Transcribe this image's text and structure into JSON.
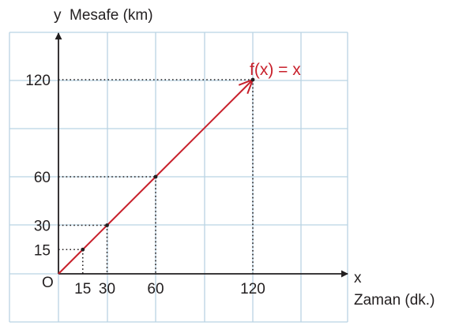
{
  "chart_data": {
    "type": "line",
    "y_axis_letter": "y",
    "ylabel": "Mesafe (km)",
    "x_axis_letter": "x",
    "xlabel": "Zaman (dk.)",
    "origin_label": "O",
    "function_label": "f(x) = x",
    "x_ticks": [
      "15",
      "30",
      "60",
      "120"
    ],
    "y_ticks": [
      "15",
      "30",
      "60",
      "120"
    ],
    "series": [
      {
        "x": [
          0,
          15,
          30,
          60,
          120
        ],
        "y": [
          0,
          15,
          30,
          60,
          120
        ]
      }
    ],
    "highlighted_points": [
      {
        "x": 15,
        "y": 15
      },
      {
        "x": 30,
        "y": 30
      },
      {
        "x": 60,
        "y": 60
      },
      {
        "x": 120,
        "y": 120
      }
    ],
    "grid": true,
    "colors": {
      "grid": "#b9d3e3",
      "axis": "#231f20",
      "line": "#c8202b",
      "guides": "#231f20"
    }
  }
}
